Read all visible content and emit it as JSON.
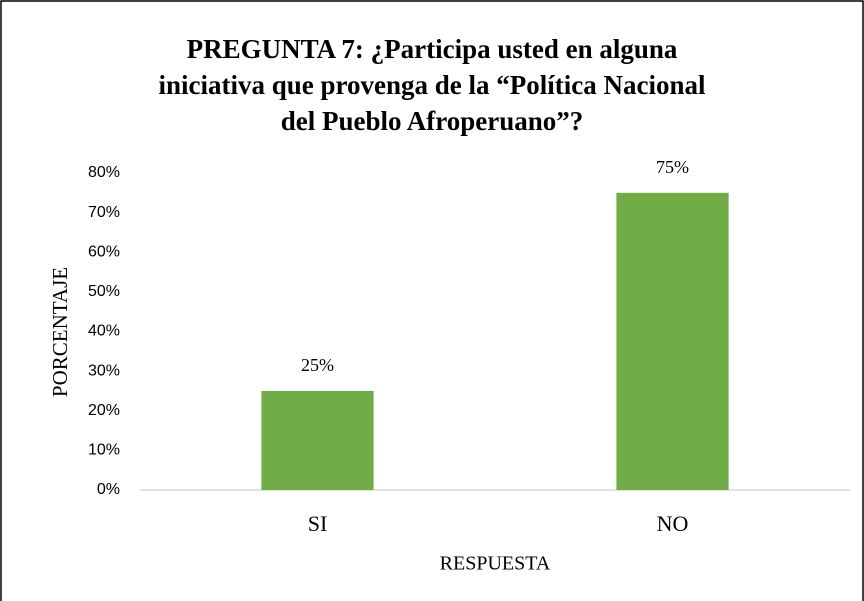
{
  "chart_data": {
    "type": "bar",
    "title": [
      "PREGUNTA 7: ¿Participa usted en alguna",
      "iniciativa que provenga de la “Política Nacional",
      "del Pueblo Afroperuano”?"
    ],
    "x_label": "RESPUESTA",
    "y_label": "PORCENTAJE",
    "categories": [
      "SI",
      "NO"
    ],
    "values": [
      25,
      75
    ],
    "value_labels": [
      "25%",
      "75%"
    ],
    "color": "#70ad47",
    "ylim": [
      0,
      80
    ],
    "yticks": [
      {
        "value": 0,
        "label": "0%"
      },
      {
        "value": 10,
        "label": "10%"
      },
      {
        "value": 20,
        "label": "20%"
      },
      {
        "value": 30,
        "label": "30%"
      },
      {
        "value": 40,
        "label": "40%"
      },
      {
        "value": 50,
        "label": "50%"
      },
      {
        "value": 60,
        "label": "60%"
      },
      {
        "value": 70,
        "label": "70%"
      },
      {
        "value": 80,
        "label": "80%"
      }
    ],
    "grid": false
  }
}
